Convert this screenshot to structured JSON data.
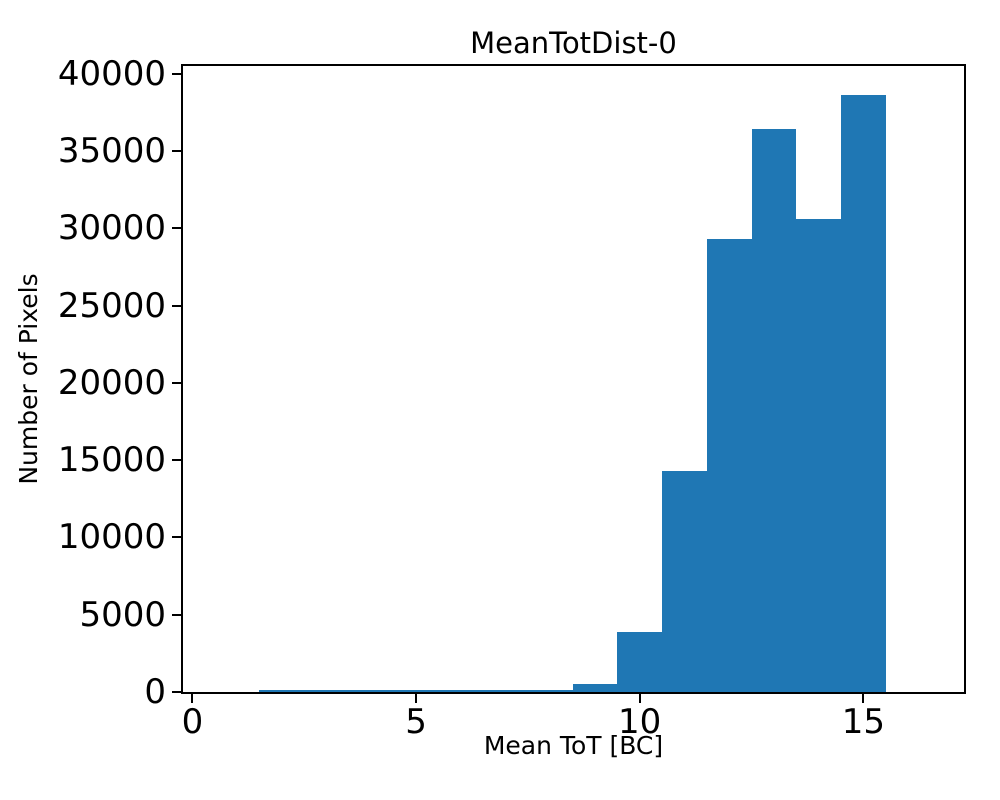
{
  "figure": {
    "background_color": "#ffffff",
    "text_color": "#000000"
  },
  "chart_data": {
    "type": "bar",
    "subtype": "histogram",
    "title": "MeanTotDist-0",
    "xlabel": "Mean ToT [BC]",
    "ylabel": "Number of Pixels",
    "bar_color": "#1f77b4",
    "grid": false,
    "legend": null,
    "bin_edges": [
      1.5,
      2.5,
      3.5,
      4.5,
      5.5,
      6.5,
      7.5,
      8.5,
      9.5,
      10.5,
      11.5,
      12.5,
      13.5,
      14.5,
      15.5
    ],
    "counts": [
      100,
      100,
      100,
      100,
      100,
      100,
      100,
      500,
      3900,
      14300,
      29300,
      36400,
      30600,
      38600
    ],
    "xticks": [
      0,
      5,
      10,
      15
    ],
    "yticks": [
      0,
      5000,
      10000,
      15000,
      20000,
      25000,
      30000,
      35000,
      40000
    ],
    "xlim": [
      -0.21,
      17.25
    ],
    "ylim": [
      0,
      40500
    ]
  }
}
